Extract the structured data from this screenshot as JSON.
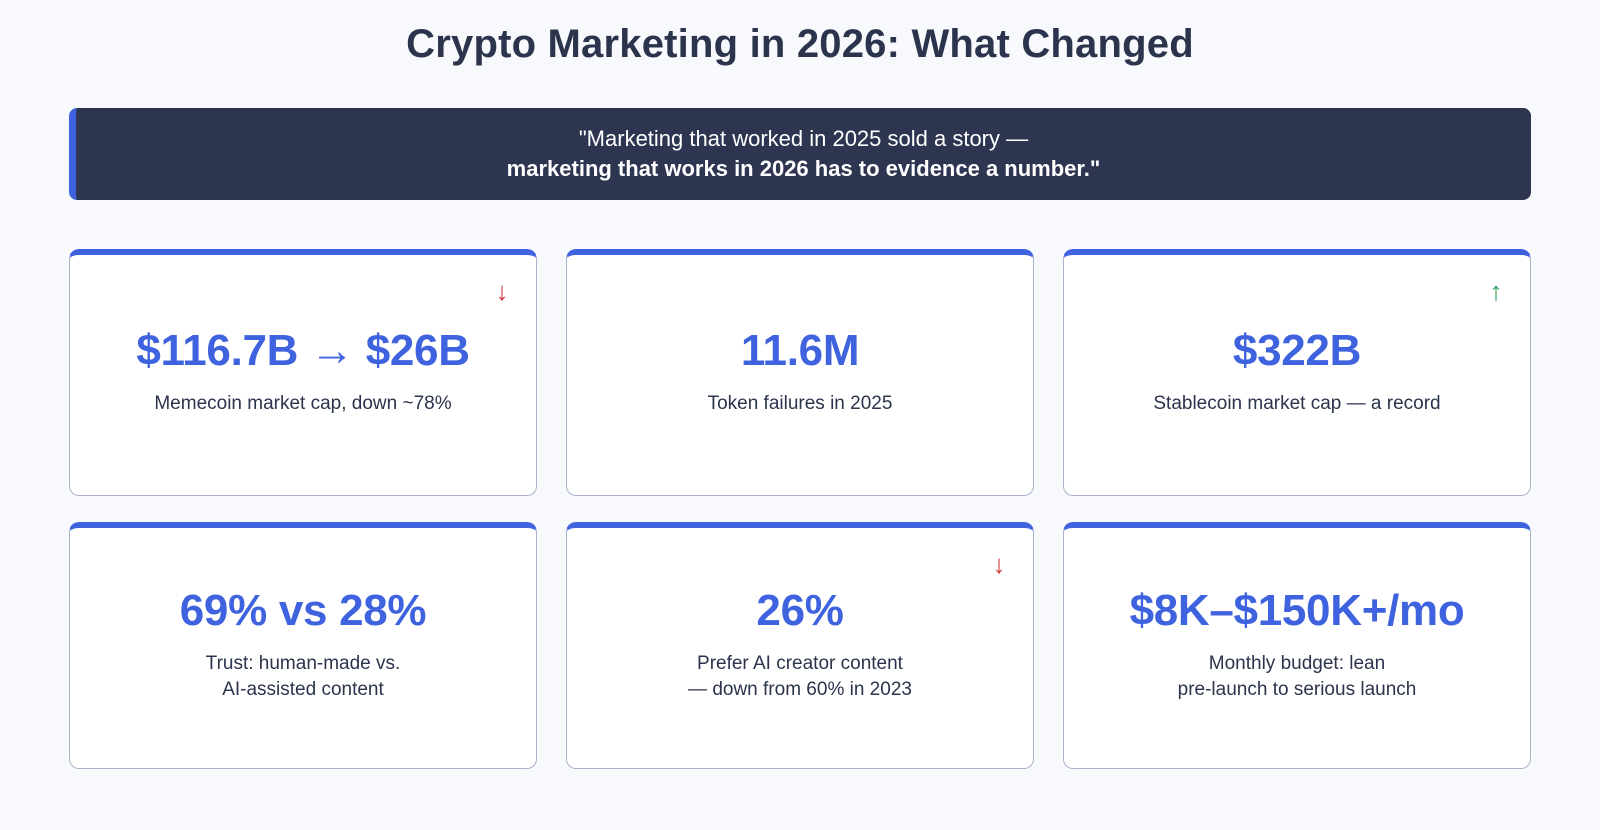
{
  "title": "Crypto Marketing in 2026: What Changed",
  "quote": {
    "line1": "\"Marketing that worked in 2025 sold a story —",
    "line2": "marketing that works in 2026 has to evidence a number.\""
  },
  "colors": {
    "accent": "#3f63df",
    "banner_bg": "#2d3550",
    "trend_down": "#cf3d3d",
    "trend_up": "#2e9a4e"
  },
  "cards": [
    {
      "value": "$116.7B → $26B",
      "label_lines": [
        "Memecoin market cap, down ~78%"
      ],
      "trend": "down",
      "trend_icon": "arrow-down-icon"
    },
    {
      "value": "11.6M",
      "label_lines": [
        "Token failures in 2025"
      ],
      "trend": "none"
    },
    {
      "value": "$322B",
      "label_lines": [
        "Stablecoin market cap — a record"
      ],
      "trend": "up",
      "trend_icon": "arrow-up-icon"
    },
    {
      "value": "69% vs 28%",
      "label_lines": [
        "Trust: human-made vs.",
        "AI-assisted content"
      ],
      "trend": "none"
    },
    {
      "value": "26%",
      "label_lines": [
        "Prefer AI creator content",
        "— down from 60% in 2023"
      ],
      "trend": "down",
      "trend_icon": "arrow-down-icon"
    },
    {
      "value": "$8K–$150K+/mo",
      "label_lines": [
        "Monthly budget: lean",
        "pre-launch to serious launch"
      ],
      "trend": "none"
    }
  ]
}
